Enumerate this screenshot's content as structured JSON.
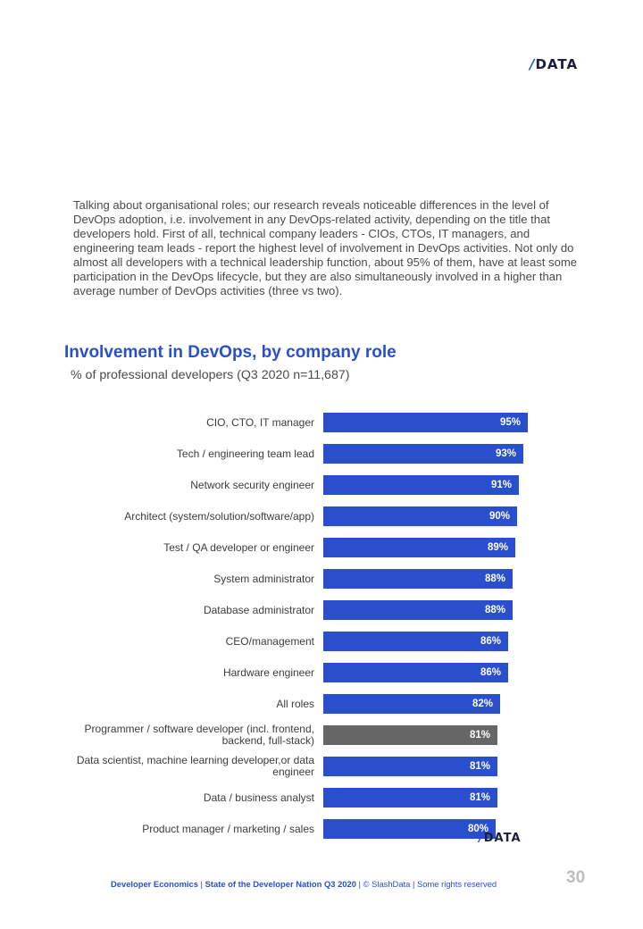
{
  "header": {
    "logo_slash": "/",
    "logo_text": "DATA"
  },
  "intro_text": "Talking about organisational roles; our research reveals noticeable differences in the level of DevOps adoption, i.e. involvement in any DevOps-related activity, depending on the title that developers hold. First of all, technical company leaders - CIOs, CTOs, IT managers, and engineering team leads - report the highest level of involvement in DevOps activities. Not only do almost all developers with a technical leadership function, about 95% of them, have at least some participation in the DevOps lifecycle, but they are also simultaneously involved in a higher than average number of DevOps activities (three vs two).",
  "chart_data": {
    "type": "bar",
    "orientation": "horizontal",
    "title": "Involvement in DevOps, by company role",
    "subtitle": "% of professional developers (Q3 2020 n=11,687)",
    "categories": [
      "CIO, CTO, IT manager",
      "Tech / engineering team lead",
      "Network security engineer",
      "Architect (system/solution/software/app)",
      "Test / QA developer or engineer",
      "System administrator",
      "Database administrator",
      "CEO/management",
      "Hardware engineer",
      "All roles",
      "Programmer / software developer (incl. frontend, backend, full-stack)",
      "Data scientist, machine learning developer,or data engineer",
      "Data / business analyst",
      "Product manager / marketing / sales"
    ],
    "values": [
      95,
      93,
      91,
      90,
      89,
      88,
      88,
      86,
      86,
      82,
      81,
      81,
      81,
      80
    ],
    "value_labels": [
      "95%",
      "93%",
      "91%",
      "90%",
      "89%",
      "88%",
      "88%",
      "86%",
      "86%",
      "82%",
      "81%",
      "81%",
      "81%",
      "80%"
    ],
    "highlight_index": 10,
    "colors": {
      "default": "#2a4fcc",
      "highlight": "#666666"
    },
    "xlabel": "",
    "ylabel": ""
  },
  "chart_logo": {
    "slash": "/",
    "text": "DATA"
  },
  "footer": {
    "brand": "Developer Economics",
    "sep1": " | ",
    "report": "State of the Developer Nation Q3 2020",
    "sep2": " | ",
    "copyright": "© SlashData",
    "sep3": " | ",
    "rights": "Some rights reserved",
    "page_number": "30"
  }
}
